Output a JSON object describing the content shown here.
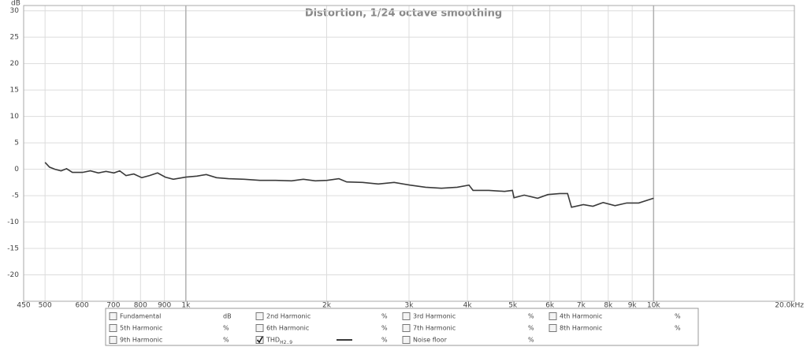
{
  "chart_data": {
    "type": "line",
    "title": "Distortion, 1/24 octave smoothing",
    "y_label": "dB",
    "log_x": true,
    "grid": true,
    "xlim": [
      450,
      20000
    ],
    "ylim": [
      -25,
      31
    ],
    "xticks": [
      450,
      500,
      600,
      700,
      800,
      900,
      {
        "value": 1000,
        "label": "1k"
      },
      {
        "value": 2000,
        "label": "2k"
      },
      {
        "value": 3000,
        "label": "3k"
      },
      {
        "value": 4000,
        "label": "4k"
      },
      {
        "value": 5000,
        "label": "5k"
      },
      {
        "value": 6000,
        "label": "6k"
      },
      {
        "value": 7000,
        "label": "7k"
      },
      {
        "value": 8000,
        "label": "8k"
      },
      {
        "value": 9000,
        "label": "9k"
      },
      {
        "value": 10000,
        "label": "10k"
      },
      {
        "value": 20000,
        "label": "20.0kHz"
      }
    ],
    "yticks": [
      30,
      25,
      20,
      15,
      10,
      5,
      0,
      -5,
      -10,
      -15,
      -20
    ],
    "x": [
      500,
      511,
      525,
      541,
      556,
      572,
      601,
      625,
      650,
      675,
      702,
      722,
      745,
      774,
      805,
      836,
      870,
      904,
      940,
      1000,
      1056,
      1106,
      1163,
      1233,
      1333,
      1440,
      1557,
      1683,
      1784,
      1891,
      2004,
      2124,
      2208,
      2387,
      2579,
      2788,
      3013,
      3255,
      3519,
      3803,
      4031,
      4111,
      4443,
      4801,
      4991,
      5030,
      5289,
      5651,
      5943,
      6301,
      6548,
      6676,
      7077,
      7418,
      7802,
      8270,
      8763,
      9290,
      10000
    ],
    "series": [
      {
        "color": "#3a3a3a",
        "values": [
          1.3,
          0.4,
          0,
          -0.3,
          0.1,
          -0.6,
          -0.6,
          -0.3,
          -0.7,
          -0.4,
          -0.7,
          -0.3,
          -1.2,
          -0.9,
          -1.6,
          -1.2,
          -0.7,
          -1.5,
          -1.9,
          -1.5,
          -1.3,
          -1.0,
          -1.6,
          -1.8,
          -1.9,
          -2.1,
          -2.1,
          -2.2,
          -1.9,
          -2.2,
          -2.1,
          -1.8,
          -2.4,
          -2.5,
          -2.8,
          -2.5,
          -3.0,
          -3.4,
          -3.6,
          -3.4,
          -3.0,
          -4.0,
          -4.0,
          -4.2,
          -4.0,
          -5.4,
          -4.9,
          -5.5,
          -4.8,
          -4.6,
          -4.6,
          -7.2,
          -6.7,
          -7.0,
          -6.3,
          -6.9,
          -6.4,
          -6.4,
          -5.5
        ]
      }
    ],
    "legend": [
      {
        "name": "Fundamental",
        "unit": "dB",
        "color": "#b8600a",
        "checked": false
      },
      {
        "name": "2nd Harmonic",
        "unit": "%",
        "color": "#d00000",
        "checked": false
      },
      {
        "name": "3rd Harmonic",
        "unit": "%",
        "color": "#e08000",
        "checked": false
      },
      {
        "name": "4th Harmonic",
        "unit": "%",
        "color": "#c8a800",
        "checked": false
      },
      {
        "name": "5th Harmonic",
        "unit": "%",
        "color": "#20a020",
        "checked": false
      },
      {
        "name": "6th Harmonic",
        "unit": "%",
        "color": "#4060e0",
        "checked": false
      },
      {
        "name": "7th Harmonic",
        "unit": "%",
        "color": "#e060e0",
        "checked": false
      },
      {
        "name": "8th Harmonic",
        "unit": "%",
        "color": "#909090",
        "checked": false
      },
      {
        "name": "9th Harmonic",
        "unit": "%",
        "color": "#20c0c0",
        "checked": false
      },
      {
        "name": "THD",
        "subscript": "H2..9",
        "unit": "%",
        "color": "#333333",
        "checked": true
      },
      {
        "name": "Noise floor",
        "unit": "%",
        "color": "#a05020",
        "checked": false
      }
    ]
  }
}
